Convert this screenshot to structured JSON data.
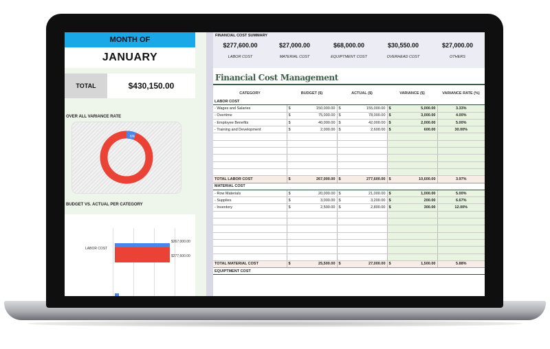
{
  "header": {
    "month_label": "MONTH OF",
    "month_value": "JANUARY"
  },
  "total": {
    "label": "TOTAL",
    "value": "$430,150.00"
  },
  "donut": {
    "title": "OVER ALL VARIANCE RATE",
    "percent_label": "6%",
    "colors": {
      "variance": "#4a86e8",
      "rest": "#ea4335"
    }
  },
  "bars": {
    "title": "BUDGET VS. ACTUAL PER CATEGORY",
    "category": "LABOR COST",
    "budget_label": "$267,000.00",
    "actual_label": "$277,600.00",
    "colors": {
      "budget": "#4a86e8",
      "actual": "#ea4335"
    }
  },
  "summary": {
    "title": "FINANCIAL COST SUMMARY",
    "items": [
      {
        "value": "$277,600.00",
        "label": "LABOR COST"
      },
      {
        "value": "$27,000.00",
        "label": "MATERIAL COST"
      },
      {
        "value": "$68,000.00",
        "label": "EQUIPTMENT COST"
      },
      {
        "value": "$30,550.00",
        "label": "OVERHEAD COST"
      },
      {
        "value": "$27,000.00",
        "label": "OTHERS"
      }
    ]
  },
  "fcm_title": "Financial Cost Management",
  "table": {
    "headers": [
      "CATEGORY",
      "BUDGET ($)",
      "ACTUAL ($)",
      "VARIANCE ($)",
      "VARIANCE RATE (%)"
    ],
    "currency": "$",
    "sections": [
      {
        "name": "LABOR COST",
        "rows": [
          {
            "category": "- Wages and Salaries",
            "budget": "150,000.00",
            "actual": "155,000.00",
            "variance": "5,000.00",
            "rate": "3.33%"
          },
          {
            "category": "- Overtime",
            "budget": "75,000.00",
            "actual": "78,000.00",
            "variance": "3,000.00",
            "rate": "4.00%"
          },
          {
            "category": "- Employee Benefits",
            "budget": "40,000.00",
            "actual": "42,000.00",
            "variance": "2,000.00",
            "rate": "5.00%"
          },
          {
            "category": "- Training and Development",
            "budget": "2,000.00",
            "actual": "2,600.00",
            "variance": "600.00",
            "rate": "30.00%"
          }
        ],
        "total": {
          "category": "TOTAL LABOR COST",
          "budget": "267,000.00",
          "actual": "277,600.00",
          "variance": "10,600.00",
          "rate": "3.97%"
        }
      },
      {
        "name": "MATERIAL COST",
        "rows": [
          {
            "category": "- Row Materials",
            "budget": "20,000.00",
            "actual": "21,000.00",
            "variance": "1,000.00",
            "rate": "5.00%"
          },
          {
            "category": "- Supplies",
            "budget": "3,000.00",
            "actual": "3,200.00",
            "variance": "200.00",
            "rate": "6.67%"
          },
          {
            "category": "- Inventory",
            "budget": "2,500.00",
            "actual": "2,800.00",
            "variance": "300.00",
            "rate": "12.00%"
          }
        ],
        "total": {
          "category": "TOTAL MATERIAL COST",
          "budget": "25,500.00",
          "actual": "27,000.00",
          "variance": "1,500.00",
          "rate": "5.88%"
        }
      },
      {
        "name": "EQUIPTMENT COST",
        "rows": []
      }
    ]
  }
}
